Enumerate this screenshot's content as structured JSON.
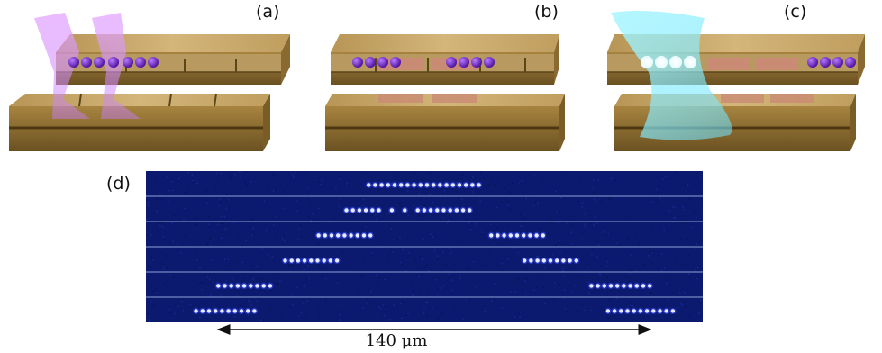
{
  "panels": {
    "a": {
      "label": "(a)"
    },
    "b": {
      "label": "(b)"
    },
    "c": {
      "label": "(c)"
    },
    "d": {
      "label": "(d)"
    }
  },
  "colors": {
    "gold_top": "#c9a96a",
    "gold_face": "#a7843f",
    "gold_dark": "#6b5122",
    "pink_segment": "#c98b74",
    "ion": "#6a1fc4",
    "beam_violet": "#d58cff",
    "beam_cyan": "#8ff4ff",
    "camera_bg": "#0b1a6e",
    "camera_ion": "#3b4cff",
    "row_separator": "#8fa3d6"
  },
  "scale_bar": {
    "text": "140 μm"
  },
  "camera": {
    "rows": 6,
    "strings": [
      [
        {
          "start": 0.4,
          "count": 18,
          "gaps": []
        }
      ],
      [
        {
          "start": 0.36,
          "count": 20,
          "gaps": [
            6,
            8,
            10
          ]
        }
      ],
      [
        {
          "start": 0.31,
          "count": 9,
          "gaps": []
        },
        {
          "start": 0.62,
          "count": 9,
          "gaps": []
        }
      ],
      [
        {
          "start": 0.25,
          "count": 9,
          "gaps": []
        },
        {
          "start": 0.68,
          "count": 9,
          "gaps": []
        }
      ],
      [
        {
          "start": 0.13,
          "count": 9,
          "gaps": []
        },
        {
          "start": 0.8,
          "count": 10,
          "gaps": []
        }
      ],
      [
        {
          "start": 0.09,
          "count": 10,
          "gaps": []
        },
        {
          "start": 0.83,
          "count": 11,
          "gaps": []
        }
      ]
    ]
  }
}
